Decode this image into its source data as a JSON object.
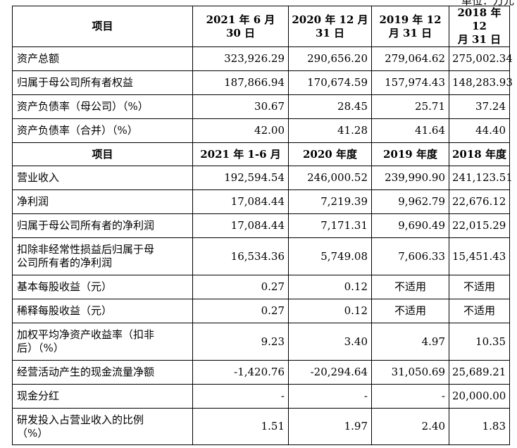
{
  "unit_label": "单位：万元",
  "section1": {
    "header": {
      "item": "项目",
      "periods": [
        "2021 年 6 月 30 日",
        "2020 年 12 月 31 日",
        "2019 年 12 月 31 日",
        "2018 年 12 月 31 日"
      ],
      "periods_lines": [
        [
          "2021 年 6 月",
          "30 日"
        ],
        [
          "2020 年 12 月",
          "31 日"
        ],
        [
          "2019 年 12",
          "月 31 日"
        ],
        [
          "2018 年 12",
          "月 31 日"
        ]
      ]
    },
    "rows": [
      {
        "label": "资产总额",
        "values": [
          "323,926.29",
          "290,656.20",
          "279,064.62",
          "275,002.34"
        ]
      },
      {
        "label": "归属于母公司所有者权益",
        "values": [
          "187,866.94",
          "170,674.59",
          "157,974.43",
          "148,283.93"
        ]
      },
      {
        "label": "资产负债率（母公司）（%）",
        "values": [
          "30.67",
          "28.45",
          "25.71",
          "37.24"
        ]
      },
      {
        "label": "资产负债率（合并）（%）",
        "values": [
          "42.00",
          "41.28",
          "41.64",
          "44.40"
        ]
      }
    ]
  },
  "section2": {
    "header": {
      "item": "项目",
      "periods": [
        "2021 年 1-6 月",
        "2020 年度",
        "2019 年度",
        "2018 年度"
      ]
    },
    "rows": [
      {
        "label": "营业收入",
        "values": [
          "192,594.54",
          "246,000.52",
          "239,990.90",
          "241,123.51"
        ]
      },
      {
        "label": "净利润",
        "values": [
          "17,084.44",
          "7,219.39",
          "9,962.79",
          "22,676.12"
        ]
      },
      {
        "label": "归属于母公司所有者的净利润",
        "values": [
          "17,084.44",
          "7,171.31",
          "9,690.49",
          "22,015.29"
        ]
      },
      {
        "label": "扣除非经常性损益后归属于母公司所有者的净利润",
        "label_lines": [
          "扣除非经常性损益后归属于母",
          "公司所有者的净利润"
        ],
        "values": [
          "16,534.36",
          "5,749.08",
          "7,606.33",
          "15,451.43"
        ]
      },
      {
        "label": "基本每股收益（元）",
        "values": [
          "0.27",
          "0.12",
          "不适用",
          "不适用"
        ]
      },
      {
        "label": "稀释每股收益（元）",
        "values": [
          "0.27",
          "0.12",
          "不适用",
          "不适用"
        ]
      },
      {
        "label": "加权平均净资产收益率（扣非后）（%）",
        "label_lines": [
          "加权平均净资产收益率（扣非",
          "后）（%）"
        ],
        "values": [
          "9.23",
          "3.40",
          "4.97",
          "10.35"
        ]
      },
      {
        "label": "经营活动产生的现金流量净额",
        "values": [
          "-1,420.76",
          "-20,294.64",
          "31,050.69",
          "25,689.21"
        ]
      },
      {
        "label": "现金分红",
        "values": [
          "-",
          "-",
          "-",
          "20,000.00"
        ]
      },
      {
        "label": "研发投入占营业收入的比例（%）",
        "label_lines": [
          "研发投入占营业收入的比例",
          "（%）"
        ],
        "values": [
          "1.51",
          "1.97",
          "2.40",
          "1.83"
        ]
      }
    ]
  }
}
